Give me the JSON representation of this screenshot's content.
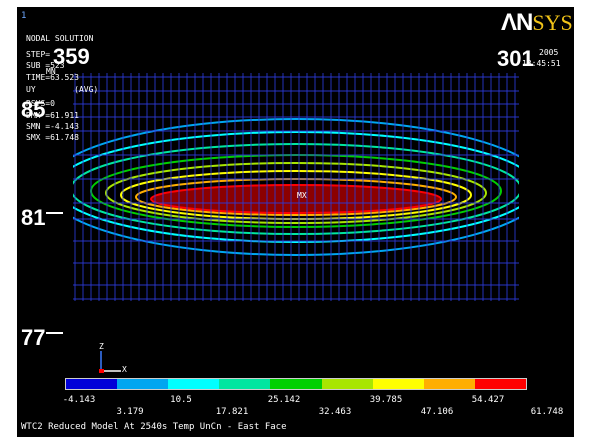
{
  "window": {
    "number": "1",
    "logo_a": "ΛN",
    "logo_b": "SYS",
    "date_line1": "2005",
    "date_line2": "13:45:51"
  },
  "info": [
    "NODAL SOLUTION",
    "STEP=",
    "SUB =523",
    "TIME=63.523",
    "UY        (AVG)",
    "RSYS=0",
    "DMX =61.911",
    "SMN =-4.143",
    "SMX =61.748"
  ],
  "overlays": {
    "big_359": "359",
    "big_301": "301",
    "big_85": "85",
    "big_81": "81",
    "big_77": "77",
    "mn_label": "MN",
    "mx_label": "MX"
  },
  "legend": {
    "colors": [
      "#0000d8",
      "#00a6f0",
      "#00ffff",
      "#00e6a0",
      "#00d000",
      "#a8e600",
      "#ffff00",
      "#ffae00",
      "#ff0000"
    ],
    "top_labels": [
      "-4.143",
      "10.5",
      "25.142",
      "39.785",
      "54.427"
    ],
    "bottom_labels": [
      "3.179",
      "17.821",
      "32.463",
      "47.106",
      "61.748"
    ]
  },
  "triad": {
    "z": "Z",
    "x": "X"
  },
  "footer": {
    "title": "WTC2 Reduced Model At 2540s Temp UnCn - East Face"
  }
}
